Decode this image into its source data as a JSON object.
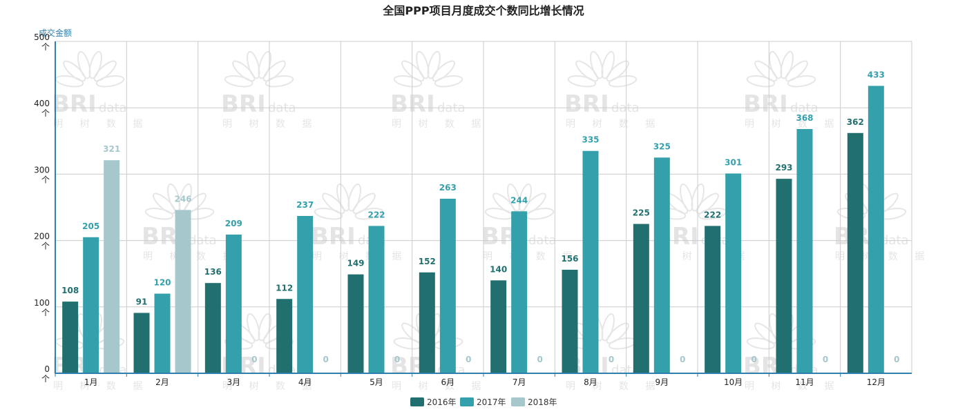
{
  "chart_data": {
    "type": "bar",
    "title": "全国PPP项目月度成交个数同比增长情况",
    "ylabel": "成交金额",
    "ylim": [
      0,
      500
    ],
    "yticks": [
      "0\n个",
      "100\n个",
      "200\n个",
      "300\n个",
      "400\n个",
      "500\n个"
    ],
    "ytick_values": [
      0,
      100,
      200,
      300,
      400,
      500
    ],
    "categories": [
      "1月",
      "2月",
      "3月",
      "4月",
      "5月",
      "6月",
      "7月",
      "8月",
      "9月",
      "10月",
      "11月",
      "12月"
    ],
    "series": [
      {
        "name": "2016年",
        "color": "#21706f",
        "values": [
          108,
          91,
          136,
          112,
          149,
          152,
          140,
          156,
          225,
          222,
          293,
          362
        ]
      },
      {
        "name": "2017年",
        "color": "#34a0ab",
        "values": [
          205,
          120,
          209,
          237,
          222,
          263,
          244,
          335,
          325,
          301,
          368,
          433
        ]
      },
      {
        "name": "2018年",
        "color": "#a6c7cc",
        "values": [
          321,
          246,
          0,
          0,
          0,
          0,
          0,
          0,
          0,
          0,
          0,
          0
        ]
      }
    ],
    "grid": true,
    "legend": "bottom-center"
  },
  "watermark": {
    "brand": "BRI",
    "brand_suffix": "data",
    "sub": "明 树 数 据"
  }
}
